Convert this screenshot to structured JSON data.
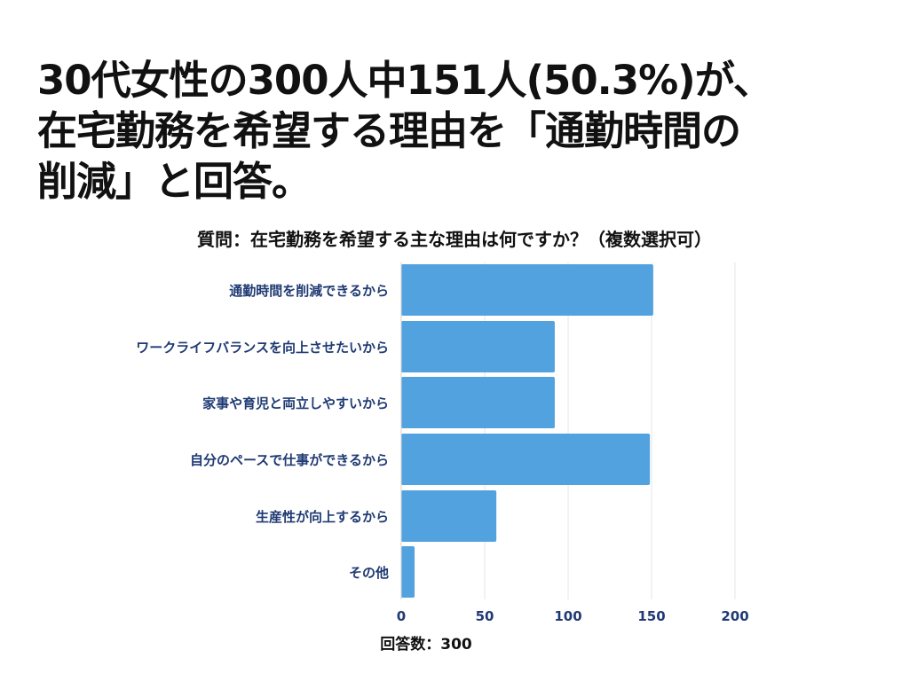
{
  "headline": {
    "line1": "30代女性の300人中151人(50.3%)が、",
    "line2": "在宅勤務を希望する理由を「通勤時間の",
    "line3": "削減」と回答。"
  },
  "footnote": "回答数：300",
  "colors": {
    "bar": "#52a2e0",
    "label": "#1f3a73",
    "grid": "#e6e6e6"
  },
  "chart_data": {
    "type": "bar",
    "orientation": "horizontal",
    "title": "質問：在宅勤務を希望する主な理由は何ですか？（複数選択可）",
    "categories": [
      "通勤時間を削減できるから",
      "ワークライフバランスを向上させたいから",
      "家事や育児と両立しやすいから",
      "自分のペースで仕事ができるから",
      "生産性が向上するから",
      "その他"
    ],
    "values": [
      151,
      92,
      92,
      149,
      57,
      8
    ],
    "xlim": [
      0,
      200
    ],
    "xticks": [
      0,
      50,
      100,
      150,
      200
    ],
    "grid": true
  }
}
